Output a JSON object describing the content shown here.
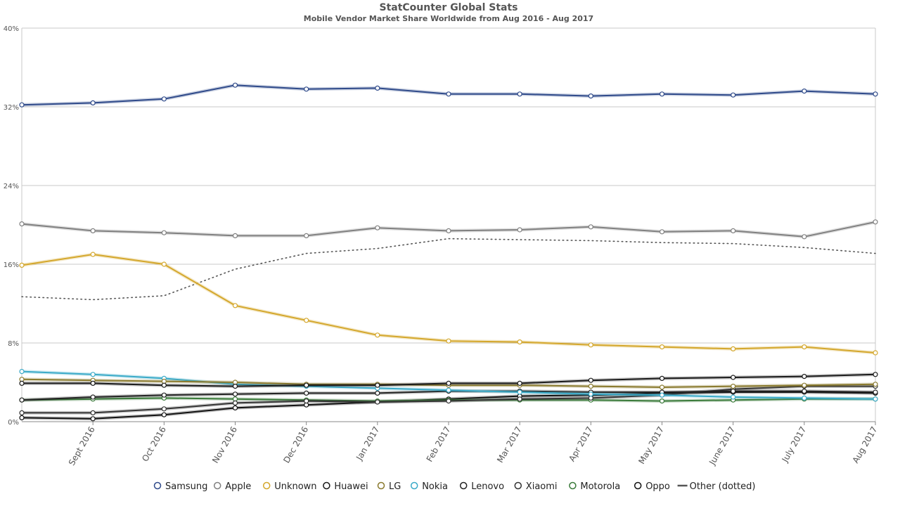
{
  "chart_data": {
    "type": "line",
    "title": "StatCounter Global Stats",
    "subtitle": "Mobile Vendor Market Share Worldwide from Aug 2016 - Aug 2017",
    "xlabel": "",
    "ylabel": "",
    "y_unit": "%",
    "ylim": [
      0,
      40
    ],
    "y_ticks": [
      "0%",
      "8%",
      "16%",
      "24%",
      "32%",
      "40%"
    ],
    "categories": [
      "Aug 2016",
      "Sept 2016",
      "Oct 2016",
      "Nov 2016",
      "Dec 2016",
      "Jan 2017",
      "Feb 2017",
      "Mar 2017",
      "Apr 2017",
      "May 2017",
      "June 2017",
      "July 2017",
      "Aug 2017"
    ],
    "x_tick_labels": [
      "Sept 2016",
      "Oct 2016",
      "Nov 2016",
      "Dec 2016",
      "Jan 2017",
      "Feb 2017",
      "Mar 2017",
      "Apr 2017",
      "May 2017",
      "June 2017",
      "July 2017",
      "Aug 2017"
    ],
    "grid": true,
    "legend_position": "bottom",
    "series": [
      {
        "name": "Samsung",
        "color": "#2f4a8a",
        "style": "solid",
        "markers": true,
        "values": [
          32.2,
          32.4,
          32.8,
          34.2,
          33.8,
          33.9,
          33.3,
          33.3,
          33.1,
          33.3,
          33.2,
          33.6,
          33.3
        ]
      },
      {
        "name": "Apple",
        "color": "#808080",
        "style": "solid",
        "markers": true,
        "values": [
          20.1,
          19.4,
          19.2,
          18.9,
          18.9,
          19.7,
          19.4,
          19.5,
          19.8,
          19.3,
          19.4,
          18.8,
          20.3
        ]
      },
      {
        "name": "Unknown",
        "color": "#d4a72c",
        "style": "solid",
        "markers": true,
        "values": [
          15.9,
          17.0,
          16.0,
          11.8,
          10.3,
          8.8,
          8.2,
          8.1,
          7.8,
          7.6,
          7.4,
          7.6,
          7.0
        ]
      },
      {
        "name": "Huawei",
        "color": "#1a1a1a",
        "style": "solid",
        "markers": true,
        "values": [
          3.9,
          3.9,
          3.7,
          3.6,
          3.7,
          3.7,
          3.9,
          3.9,
          4.2,
          4.4,
          4.5,
          4.6,
          4.8
        ]
      },
      {
        "name": "LG",
        "color": "#8a7a2e",
        "style": "solid",
        "markers": true,
        "values": [
          4.3,
          4.2,
          4.1,
          4.0,
          3.8,
          3.8,
          3.7,
          3.7,
          3.6,
          3.5,
          3.6,
          3.7,
          3.8
        ]
      },
      {
        "name": "Nokia",
        "color": "#3aaac8",
        "style": "solid",
        "markers": true,
        "values": [
          5.1,
          4.8,
          4.4,
          3.8,
          3.6,
          3.4,
          3.2,
          3.0,
          2.8,
          2.7,
          2.5,
          2.4,
          2.3
        ]
      },
      {
        "name": "Lenovo",
        "color": "#222222",
        "style": "solid",
        "markers": true,
        "values": [
          2.2,
          2.5,
          2.7,
          2.8,
          2.9,
          2.9,
          3.1,
          3.1,
          3.0,
          3.0,
          3.1,
          3.1,
          3.0
        ]
      },
      {
        "name": "Xiaomi",
        "color": "#333333",
        "style": "solid",
        "markers": true,
        "values": [
          0.9,
          0.9,
          1.3,
          1.9,
          2.1,
          2.0,
          2.1,
          2.3,
          2.4,
          2.7,
          3.3,
          3.6,
          3.6
        ]
      },
      {
        "name": "Motorola",
        "color": "#3a7a3a",
        "style": "solid",
        "markers": true,
        "values": [
          2.2,
          2.3,
          2.4,
          2.3,
          2.2,
          2.1,
          2.2,
          2.2,
          2.2,
          2.1,
          2.2,
          2.3,
          2.3
        ]
      },
      {
        "name": "Oppo",
        "color": "#111111",
        "style": "solid",
        "markers": true,
        "values": [
          0.4,
          0.3,
          0.7,
          1.4,
          1.7,
          2.0,
          2.3,
          2.6,
          2.7,
          2.9,
          3.0,
          3.0,
          2.9
        ]
      },
      {
        "name": "Other (dotted)",
        "color": "#555555",
        "style": "dotted",
        "markers": false,
        "values": [
          12.7,
          12.4,
          12.8,
          15.5,
          17.1,
          17.6,
          18.6,
          18.5,
          18.4,
          18.2,
          18.1,
          17.7,
          17.1
        ]
      }
    ]
  }
}
